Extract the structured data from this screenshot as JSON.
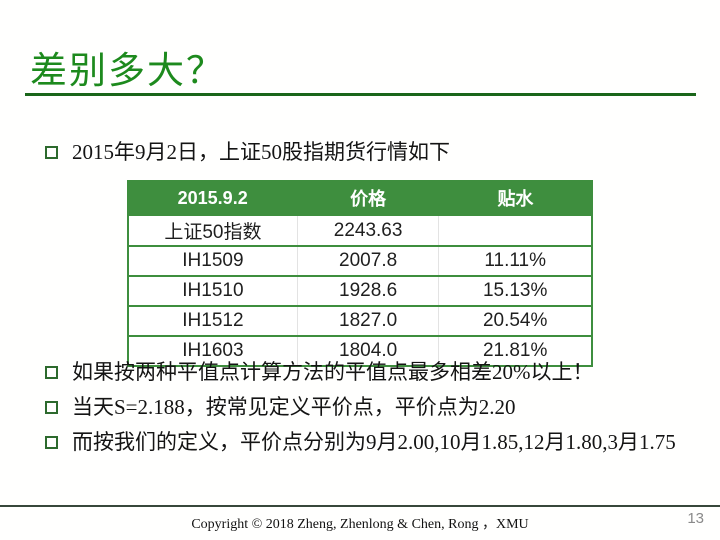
{
  "slide": {
    "title": "差别多大？",
    "footer": "Copyright © 2018 Zheng, Zhenlong & Chen, Rong ，XMU",
    "page_number": "13"
  },
  "bullets": [
    {
      "text": "2015年9月2日，上证50股指期货行情如下"
    },
    {
      "text": "如果按两种平值点计算方法的平值点最多相差20%以上！"
    },
    {
      "text": "当天S=2.188，按常见定义平价点，平价点为2.20"
    },
    {
      "text": "而按我们的定义，平价点分别为9月2.00,10月1.85,12月1.80,3月1.75"
    }
  ],
  "table": {
    "headers": [
      "2015.9.2",
      "价格",
      "贴水"
    ],
    "rows": [
      [
        "上证50指数",
        "2243.63",
        ""
      ],
      [
        "IH1509",
        "2007.8",
        "11.11%"
      ],
      [
        "IH1510",
        "1928.6",
        "15.13%"
      ],
      [
        "IH1512",
        "1827.0",
        "20.54%"
      ],
      [
        "IH1603",
        "1804.0",
        "21.81%"
      ]
    ]
  },
  "colors": {
    "title_green": "#1d8a1d",
    "underline_green": "#1a661a",
    "table_header_green": "#3e8e3e",
    "bullet_square_green": "#2d6a2d",
    "footer_line_dark": "#37473a",
    "page_number_gray": "#8a8a8a"
  }
}
